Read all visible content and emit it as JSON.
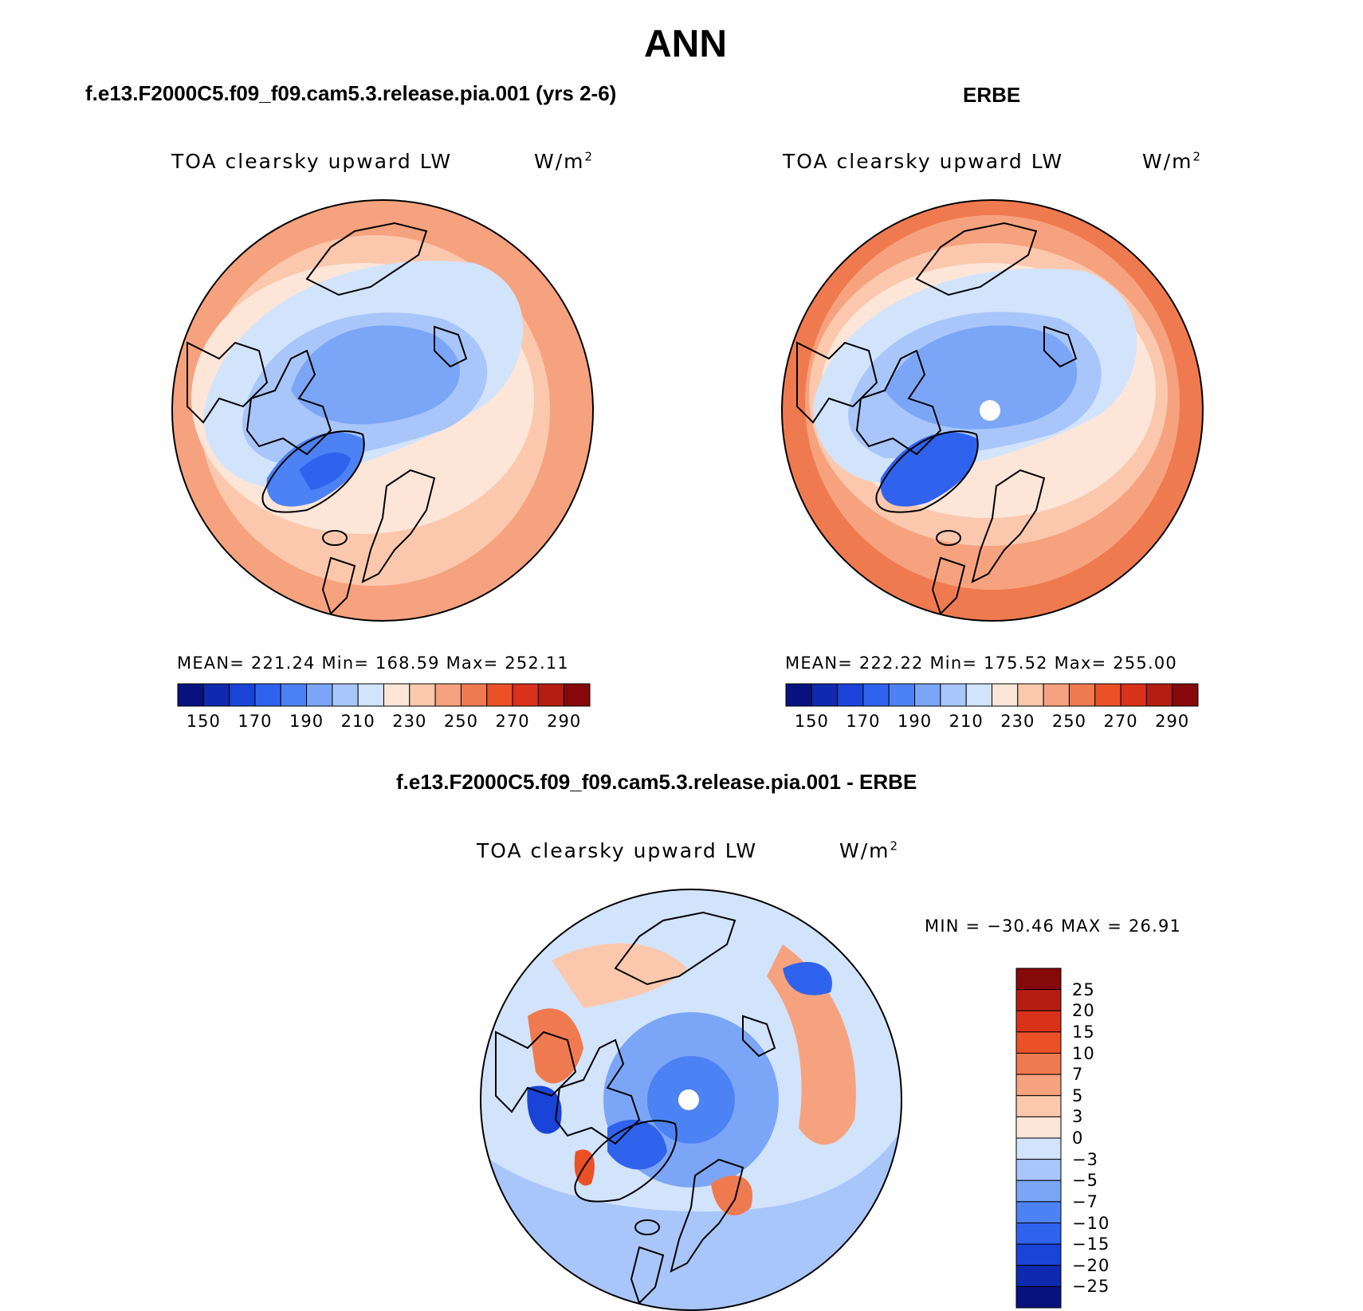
{
  "title": "ANN",
  "colors": {
    "abs_scale": [
      "#08127f",
      "#0f2ab0",
      "#1a43d8",
      "#2f63ee",
      "#4d82f4",
      "#7ba6f7",
      "#a9c6fa",
      "#d2e3fc",
      "#fde6d8",
      "#fbc8ad",
      "#f6a27e",
      "#f07a4f",
      "#ea5126",
      "#d8321a",
      "#b61d12",
      "#860909"
    ],
    "diff_scale": [
      "#08127f",
      "#0f2ab0",
      "#1a43d8",
      "#2f63ee",
      "#4d82f4",
      "#7ba6f7",
      "#a9c6fa",
      "#d2e3fc",
      "#fde6d8",
      "#fbc8ad",
      "#f6a27e",
      "#f07a4f",
      "#ea5126",
      "#d8321a",
      "#b61d12",
      "#860909"
    ]
  },
  "panels": [
    {
      "case_title": "f.e13.F2000C5.f09_f09.cam5.3.release.pia.001 (yrs 2-6)",
      "variable": "TOA clearsky upward LW",
      "units": "W/m",
      "units_exp": "2",
      "stats": "MEAN= 221.24   Min= 168.59   Max= 252.11",
      "colorbar_ticks": [
        "150",
        "170",
        "190",
        "210",
        "230",
        "250",
        "270",
        "290"
      ]
    },
    {
      "case_title": "ERBE",
      "variable": "TOA clearsky upward LW",
      "units": "W/m",
      "units_exp": "2",
      "stats": "MEAN= 222.22   Min= 175.52   Max= 255.00",
      "colorbar_ticks": [
        "150",
        "170",
        "190",
        "210",
        "230",
        "250",
        "270",
        "290"
      ]
    },
    {
      "case_title": "f.e13.F2000C5.f09_f09.cam5.3.release.pia.001 - ERBE",
      "variable": "TOA clearsky upward LW",
      "units": "W/m",
      "units_exp": "2",
      "stats": "MIN = −30.46 MAX =   26.91",
      "colorbar_ticks": [
        "25",
        "20",
        "15",
        "10",
        "7",
        "5",
        "3",
        "0",
        "−3",
        "−5",
        "−7",
        "−10",
        "−15",
        "−20",
        "−25"
      ]
    }
  ]
}
